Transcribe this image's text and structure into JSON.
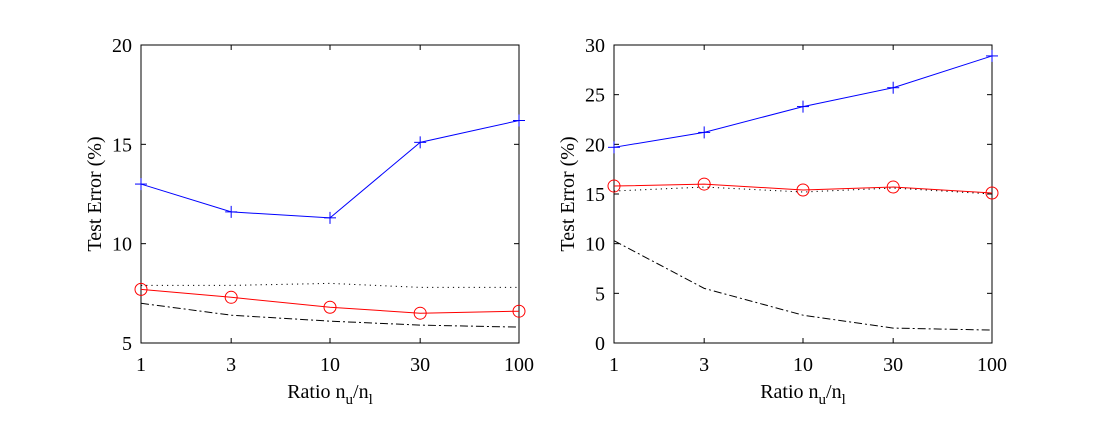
{
  "chart_data": [
    {
      "type": "line",
      "x_scale": "log",
      "x": [
        1,
        3,
        10,
        30,
        100
      ],
      "x_tick_labels": [
        "1",
        "3",
        "10",
        "30",
        "100"
      ],
      "xlim": [
        1,
        100
      ],
      "ylim": [
        5,
        20
      ],
      "y_ticks": [
        5,
        10,
        15,
        20
      ],
      "y_tick_labels": [
        "5",
        "10",
        "15",
        "20"
      ],
      "xlabel": {
        "base": "Ratio n",
        "sub1": "u",
        "slash": "/n",
        "sub2": "l"
      },
      "ylabel": "Test Error (%)",
      "series": [
        {
          "name": "plus-marker series",
          "color": "#0000ff",
          "style": "solid",
          "marker": "plus",
          "values": [
            13.0,
            11.6,
            11.3,
            15.1,
            16.2
          ]
        },
        {
          "name": "circle-marker series",
          "color": "#ff0000",
          "style": "solid",
          "marker": "circle",
          "values": [
            7.7,
            7.3,
            6.8,
            6.5,
            6.6
          ]
        },
        {
          "name": "dotted series",
          "color": "#000000",
          "style": "dotted",
          "marker": "none",
          "values": [
            7.9,
            7.9,
            8.0,
            7.8,
            7.8
          ]
        },
        {
          "name": "dash-dot series",
          "color": "#000000",
          "style": "dashdot",
          "marker": "none",
          "values": [
            7.0,
            6.4,
            6.1,
            5.9,
            5.8
          ]
        }
      ]
    },
    {
      "type": "line",
      "x_scale": "log",
      "x": [
        1,
        3,
        10,
        30,
        100
      ],
      "x_tick_labels": [
        "1",
        "3",
        "10",
        "30",
        "100"
      ],
      "xlim": [
        1,
        100
      ],
      "ylim": [
        0,
        30
      ],
      "y_ticks": [
        0,
        5,
        10,
        15,
        20,
        25,
        30
      ],
      "y_tick_labels": [
        "0",
        "5",
        "10",
        "15",
        "20",
        "25",
        "30"
      ],
      "xlabel": {
        "base": "Ratio n",
        "sub1": "u",
        "slash": "/n",
        "sub2": "l"
      },
      "ylabel": "Test Error (%)",
      "series": [
        {
          "name": "plus-marker series",
          "color": "#0000ff",
          "style": "solid",
          "marker": "plus",
          "values": [
            19.7,
            21.2,
            23.8,
            25.7,
            28.9
          ]
        },
        {
          "name": "circle-marker series",
          "color": "#ff0000",
          "style": "solid",
          "marker": "circle",
          "values": [
            15.8,
            16.0,
            15.4,
            15.7,
            15.1
          ]
        },
        {
          "name": "dotted series",
          "color": "#000000",
          "style": "dotted",
          "marker": "none",
          "values": [
            15.3,
            15.7,
            15.2,
            15.6,
            15.0
          ]
        },
        {
          "name": "dash-dot series",
          "color": "#000000",
          "style": "dashdot",
          "marker": "none",
          "values": [
            10.3,
            5.5,
            2.8,
            1.5,
            1.3
          ]
        }
      ]
    }
  ]
}
